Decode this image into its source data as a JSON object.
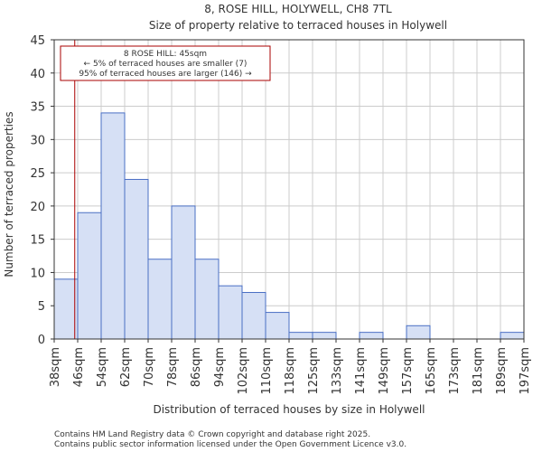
{
  "chart_data": {
    "type": "histogram",
    "title": "8, ROSE HILL, HOLYWELL, CH8 7TL",
    "subtitle": "Size of property relative to terraced houses in Holywell",
    "xlabel": "Distribution of terraced houses by size in Holywell",
    "ylabel": "Number of terraced properties",
    "bin_edges": [
      38,
      46,
      54,
      62,
      70,
      78,
      86,
      94,
      102,
      110,
      118,
      125,
      133,
      141,
      149,
      157,
      165,
      173,
      181,
      189,
      197
    ],
    "tick_labels": [
      "38sqm",
      "46sqm",
      "54sqm",
      "62sqm",
      "70sqm",
      "78sqm",
      "86sqm",
      "94sqm",
      "102sqm",
      "110sqm",
      "118sqm",
      "125sqm",
      "133sqm",
      "141sqm",
      "149sqm",
      "157sqm",
      "165sqm",
      "173sqm",
      "181sqm",
      "189sqm",
      "197sqm"
    ],
    "values": [
      9,
      19,
      34,
      24,
      12,
      20,
      12,
      8,
      7,
      4,
      1,
      1,
      0,
      1,
      0,
      2,
      0,
      0,
      0,
      1
    ],
    "ylim": [
      0,
      45
    ],
    "yticks": [
      0,
      5,
      10,
      15,
      20,
      25,
      30,
      35,
      40,
      45
    ],
    "grid": true,
    "bar_color": "#d6e0f5",
    "bar_edge_color": "#4a6fc4",
    "marker": {
      "value": 45,
      "color": "#aa0000",
      "label_lines": [
        "8 ROSE HILL: 45sqm",
        "← 5% of terraced houses are smaller (7)",
        "95% of terraced houses are larger (146) →"
      ]
    }
  },
  "footer": {
    "line1": "Contains HM Land Registry data © Crown copyright and database right 2025.",
    "line2": "Contains public sector information licensed under the Open Government Licence v3.0."
  }
}
